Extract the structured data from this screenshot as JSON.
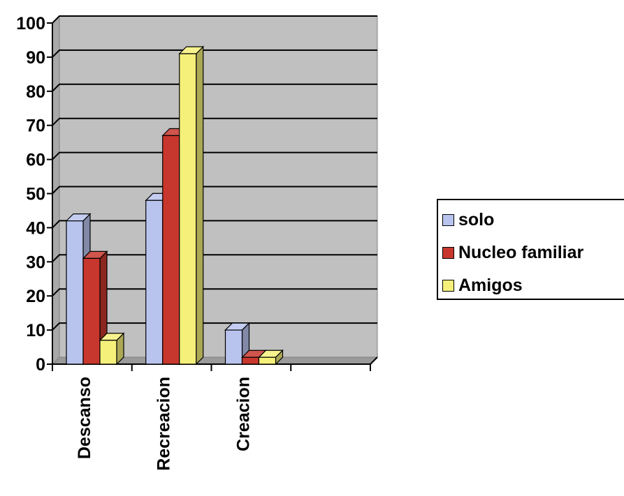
{
  "chart_data": {
    "type": "bar",
    "categories": [
      "Descanso",
      "Recreacion",
      "Creacion",
      ""
    ],
    "series": [
      {
        "name": "solo",
        "values": [
          42,
          48,
          10,
          null
        ]
      },
      {
        "name": "Nucleo familiar",
        "values": [
          31,
          67,
          2,
          null
        ]
      },
      {
        "name": "Amigos",
        "values": [
          7,
          91,
          2,
          null
        ]
      }
    ],
    "colors": [
      "#b9c4ee",
      "#c8372d",
      "#f5f07a"
    ],
    "title": "",
    "xlabel": "",
    "ylabel": "",
    "ylim": [
      0,
      100
    ],
    "yticks": [
      0,
      10,
      20,
      30,
      40,
      50,
      60,
      70,
      80,
      90,
      100
    ],
    "grid": true,
    "legend_position": "right"
  }
}
